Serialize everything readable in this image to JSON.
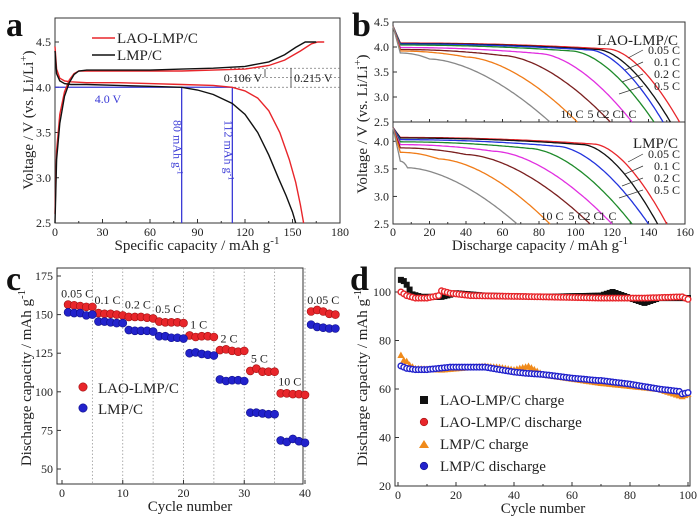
{
  "chart_data": [
    {
      "id": "a",
      "type": "line",
      "panel_label": "a",
      "xlabel": "Specific capacity / mAh g",
      "xlabel_sup": "-1",
      "ylabel": "Voltage / V (vs. Li/Li",
      "ylabel_sup": "+",
      "ylabel_end": ")",
      "xlim": [
        0,
        180
      ],
      "ylim": [
        2.5,
        4.7
      ],
      "xticks": [
        0,
        30,
        60,
        90,
        120,
        150,
        180
      ],
      "yticks": [
        2.5,
        3.0,
        3.5,
        4.0,
        4.5
      ],
      "ytick_labels": [
        "2.5",
        "3.0",
        "3.5",
        "4.0",
        "4.5"
      ],
      "legend": [
        {
          "name": "LAO-LMP/C",
          "color": "#e8262b"
        },
        {
          "name": "LMP/C",
          "color": "#111111"
        }
      ],
      "series": [
        {
          "name": "LAO-LMP/C charge",
          "color": "#e8262b",
          "x": [
            0,
            1,
            3,
            6,
            9,
            12,
            15,
            20,
            40,
            60,
            80,
            100,
            120,
            135,
            145,
            155,
            162,
            166,
            170
          ],
          "y": [
            2.6,
            3.3,
            3.7,
            3.95,
            4.08,
            4.15,
            4.18,
            4.18,
            4.18,
            4.18,
            4.18,
            4.19,
            4.2,
            4.24,
            4.3,
            4.4,
            4.48,
            4.5,
            4.5
          ]
        },
        {
          "name": "LAO-LMP/C discharge",
          "color": "#e8262b",
          "x": [
            0,
            1,
            3,
            6,
            10,
            20,
            40,
            60,
            80,
            100,
            112,
            120,
            128,
            135,
            142,
            148,
            152,
            155,
            157
          ],
          "y": [
            4.45,
            4.2,
            4.1,
            4.07,
            4.06,
            4.05,
            4.05,
            4.04,
            4.03,
            4.02,
            4.0,
            3.96,
            3.88,
            3.74,
            3.5,
            3.2,
            2.95,
            2.7,
            2.5
          ]
        },
        {
          "name": "LMP/C charge",
          "color": "#111111",
          "x": [
            0,
            1,
            3,
            6,
            9,
            12,
            15,
            20,
            40,
            60,
            80,
            100,
            120,
            135,
            145,
            152,
            158,
            162,
            165
          ],
          "y": [
            2.5,
            3.2,
            3.6,
            3.9,
            4.05,
            4.14,
            4.18,
            4.19,
            4.19,
            4.19,
            4.2,
            4.21,
            4.23,
            4.28,
            4.36,
            4.44,
            4.5,
            4.5,
            4.5
          ]
        },
        {
          "name": "LMP/C discharge",
          "color": "#111111",
          "x": [
            0,
            1,
            3,
            6,
            10,
            20,
            40,
            60,
            80,
            90,
            100,
            112,
            120,
            128,
            135,
            141,
            146,
            150,
            152
          ],
          "y": [
            4.4,
            4.15,
            4.07,
            4.04,
            4.03,
            4.03,
            4.02,
            4.01,
            4.0,
            3.97,
            3.92,
            3.82,
            3.7,
            3.5,
            3.25,
            3.0,
            2.8,
            2.62,
            2.5
          ]
        }
      ],
      "annotations": {
        "hline_label": "4.0 V",
        "vline1_label": "80 mAh g",
        "vline1_sup": "-1",
        "vline2_label": "112 mAh g",
        "vline2_sup": "-1",
        "gap1_label": "0.106 V",
        "gap2_label": "0.215 V",
        "hline_value": 4.0,
        "vline1_value": 80,
        "vline2_value": 112,
        "annotation_color": "#3a3ad6"
      }
    },
    {
      "id": "b",
      "type": "line",
      "panel_label": "b",
      "xlabel": "Discharge capacity / mAh g",
      "xlabel_sup": "-1",
      "ylabel": "Voltage / V (vs. Li/Li",
      "ylabel_sup": "+",
      "ylabel_end": ")",
      "xlim": [
        0,
        160
      ],
      "xticks": [
        0,
        20,
        40,
        60,
        80,
        100,
        120,
        140,
        160
      ],
      "subplots": [
        {
          "title": "LAO-LMP/C",
          "ylim": [
            2.5,
            4.5
          ],
          "yticks": [
            "2.5",
            "3.0",
            "3.5",
            "4.0",
            "4.5"
          ],
          "rate_labels_right": [
            "0.05 C",
            "0.1 C",
            "0.2 C",
            "0.5 C"
          ],
          "rate_labels_bottom": [
            "10 C",
            "5 C",
            "2 C",
            "1 C"
          ],
          "series": [
            {
              "name": "0.05 C",
              "color": "#e8262b",
              "end": 157,
              "plateau": 4.06,
              "knee": 118
            },
            {
              "name": "0.1 C",
              "color": "#111111",
              "end": 152,
              "plateau": 4.05,
              "knee": 112
            },
            {
              "name": "0.2 C",
              "color": "#2233dd",
              "end": 148,
              "plateau": 4.04,
              "knee": 108
            },
            {
              "name": "0.5 C",
              "color": "#1e8a2a",
              "end": 143,
              "plateau": 4.02,
              "knee": 98
            },
            {
              "name": "1 C",
              "color": "#e12fe0",
              "end": 131,
              "plateau": 3.97,
              "knee": 80
            },
            {
              "name": "2 C",
              "color": "#7a1f1f",
              "end": 119,
              "plateau": 3.93,
              "knee": 60
            },
            {
              "name": "5 C",
              "color": "#f07c18",
              "end": 101,
              "plateau": 3.9,
              "knee": 40
            },
            {
              "name": "10 C",
              "color": "#888888",
              "end": 86,
              "plateau": 3.86,
              "knee": 20
            }
          ]
        },
        {
          "title": "LMP/C",
          "ylim": [
            2.5,
            4.3
          ],
          "yticks": [
            "2.5",
            "3.0",
            "3.5",
            "4.0"
          ],
          "rate_labels_right": [
            "0.05 C",
            "0.1 C",
            "0.2 C",
            "0.5 C"
          ],
          "rate_labels_bottom": [
            "10 C",
            "5 C",
            "2 C",
            "1 C"
          ],
          "series": [
            {
              "name": "0.05 C",
              "color": "#e8262b",
              "end": 150,
              "plateau": 4.05,
              "knee": 110
            },
            {
              "name": "0.1 C",
              "color": "#111111",
              "end": 145,
              "plateau": 4.04,
              "knee": 104
            },
            {
              "name": "0.2 C",
              "color": "#2233dd",
              "end": 140,
              "plateau": 4.01,
              "knee": 90
            },
            {
              "name": "0.5 C",
              "color": "#1e8a2a",
              "end": 131,
              "plateau": 3.97,
              "knee": 75
            },
            {
              "name": "1 C",
              "color": "#e12fe0",
              "end": 120,
              "plateau": 3.92,
              "knee": 55
            },
            {
              "name": "2 C",
              "color": "#7a1f1f",
              "end": 108,
              "plateau": 3.86,
              "knee": 40
            },
            {
              "name": "5 C",
              "color": "#f07c18",
              "end": 86,
              "plateau": 3.78,
              "knee": 25
            },
            {
              "name": "10 C",
              "color": "#888888",
              "end": 68,
              "plateau": 3.62,
              "knee": 8
            }
          ]
        }
      ]
    },
    {
      "id": "c",
      "type": "scatter",
      "panel_label": "c",
      "xlabel": "Cycle number",
      "ylabel": "Discharge capacity / mAh g",
      "ylabel_sup": "-1",
      "xlim": [
        -1,
        46
      ],
      "ylim": [
        40,
        180
      ],
      "xticks": [
        0,
        10,
        20,
        30,
        40
      ],
      "yticks": [
        50,
        75,
        100,
        125,
        150,
        175
      ],
      "dividers": [
        5,
        10,
        15,
        20,
        25,
        30,
        35,
        40
      ],
      "rate_labels": [
        {
          "text": "0.05 C",
          "x": 2.5,
          "y": 161
        },
        {
          "text": "0.1 C",
          "x": 7.5,
          "y": 157
        },
        {
          "text": "0.2 C",
          "x": 12.5,
          "y": 154
        },
        {
          "text": "0.5 C",
          "x": 17.5,
          "y": 151
        },
        {
          "text": "1 C",
          "x": 22.5,
          "y": 141
        },
        {
          "text": "2 C",
          "x": 27.5,
          "y": 132
        },
        {
          "text": "5 C",
          "x": 32.5,
          "y": 119
        },
        {
          "text": "10 C",
          "x": 37.5,
          "y": 104
        },
        {
          "text": "0.05 C",
          "x": 43,
          "y": 157
        }
      ],
      "legend": [
        {
          "name": "LAO-LMP/C",
          "color": "#e8262b"
        },
        {
          "name": "LMP/C",
          "color": "#2222cc"
        }
      ],
      "series": [
        {
          "name": "LAO-LMP/C",
          "color": "#e8262b",
          "x": [
            1,
            2,
            3,
            4,
            5,
            6,
            7,
            8,
            9,
            10,
            11,
            12,
            13,
            14,
            15,
            16,
            17,
            18,
            19,
            20,
            21,
            22,
            23,
            24,
            25,
            26,
            27,
            28,
            29,
            30,
            31,
            32,
            33,
            34,
            35,
            36,
            37,
            38,
            39,
            40,
            41,
            42,
            43,
            44,
            45
          ],
          "y": [
            156.5,
            156,
            155.5,
            155,
            155,
            151,
            150.5,
            150.5,
            150,
            149.5,
            148.5,
            148.5,
            148.5,
            148,
            147.5,
            145.5,
            145,
            145,
            145,
            144.5,
            136.5,
            135.5,
            136,
            136,
            135.5,
            127,
            127.5,
            126.5,
            126,
            126.5,
            113.5,
            115,
            113,
            113,
            113,
            99,
            99,
            98.5,
            98.5,
            98,
            152,
            153,
            152,
            150.5,
            150
          ]
        },
        {
          "name": "LMP/C",
          "color": "#2222cc",
          "x": [
            1,
            2,
            3,
            4,
            5,
            6,
            7,
            8,
            9,
            10,
            11,
            12,
            13,
            14,
            15,
            16,
            17,
            18,
            19,
            20,
            21,
            22,
            23,
            24,
            25,
            26,
            27,
            28,
            29,
            30,
            31,
            32,
            33,
            34,
            35,
            36,
            37,
            38,
            39,
            40,
            41,
            42,
            43,
            44,
            45
          ],
          "y": [
            151.5,
            151,
            151,
            149.5,
            150,
            145.5,
            145.5,
            145,
            144.5,
            144.5,
            140,
            139.5,
            139.5,
            139.5,
            139,
            136,
            136,
            135,
            135,
            134.5,
            125,
            125.5,
            124.5,
            124,
            123.5,
            108,
            107,
            107.5,
            107.5,
            107,
            86.5,
            86.5,
            86,
            85.5,
            85.5,
            68.5,
            67.5,
            69.5,
            68,
            67,
            143.5,
            142,
            141.5,
            141,
            141
          ]
        }
      ]
    },
    {
      "id": "d",
      "type": "scatter",
      "panel_label": "d",
      "xlabel": "Cycle number",
      "ylabel": "Discharge capacity / mAh g",
      "ylabel_sup": "-1",
      "xlim": [
        -1,
        100.5
      ],
      "ylim": [
        20,
        107
      ],
      "xticks": [
        0,
        20,
        40,
        60,
        80,
        100
      ],
      "yticks": [
        20,
        40,
        60,
        80,
        100
      ],
      "legend": [
        {
          "name": "LAO-LMP/C charge",
          "color": "#111111",
          "marker": "square"
        },
        {
          "name": "LAO-LMP/C discharge",
          "color": "#e8262b",
          "marker": "circle-open"
        },
        {
          "name": "LMP/C charge",
          "color": "#f08a1a",
          "marker": "triangle"
        },
        {
          "name": "LMP/C discharge",
          "color": "#2222cc",
          "marker": "circle-open"
        }
      ],
      "series": [
        {
          "name": "LAO-LMP/C charge",
          "anchors_x": [
            1,
            2,
            3,
            4,
            5,
            8,
            15,
            20,
            30,
            50,
            70,
            74,
            80,
            85,
            90,
            100
          ],
          "anchors_y": [
            105,
            104.5,
            103,
            101,
            99,
            98,
            98,
            99.5,
            98.5,
            98,
            98.5,
            100,
            97.5,
            95.5,
            97.5,
            97.5
          ]
        },
        {
          "name": "LAO-LMP/C discharge",
          "anchors_x": [
            1,
            3,
            6,
            10,
            14,
            15,
            18,
            25,
            50,
            70,
            85,
            98,
            100
          ],
          "anchors_y": [
            100,
            98.5,
            97.5,
            97.5,
            98.5,
            100.5,
            99.5,
            98.5,
            98,
            97.5,
            97.5,
            98,
            97
          ]
        },
        {
          "name": "LMP/C charge",
          "anchors_x": [
            1,
            2,
            3,
            4,
            6,
            15,
            30,
            35,
            40,
            45,
            50,
            70,
            90,
            98,
            100
          ],
          "anchors_y": [
            74,
            72,
            71.5,
            70,
            68.5,
            68,
            69.5,
            69,
            68,
            69.5,
            66,
            62.5,
            60,
            57,
            58
          ]
        },
        {
          "name": "LMP/C discharge",
          "anchors_x": [
            1,
            3,
            6,
            10,
            18,
            30,
            40,
            44,
            50,
            60,
            69,
            70,
            80,
            90,
            97,
            98,
            100
          ],
          "anchors_y": [
            69.5,
            68.5,
            68,
            68,
            69,
            69,
            67,
            66.5,
            66,
            64.5,
            63.5,
            63.5,
            62,
            60,
            59,
            58,
            58.5
          ]
        }
      ]
    }
  ]
}
